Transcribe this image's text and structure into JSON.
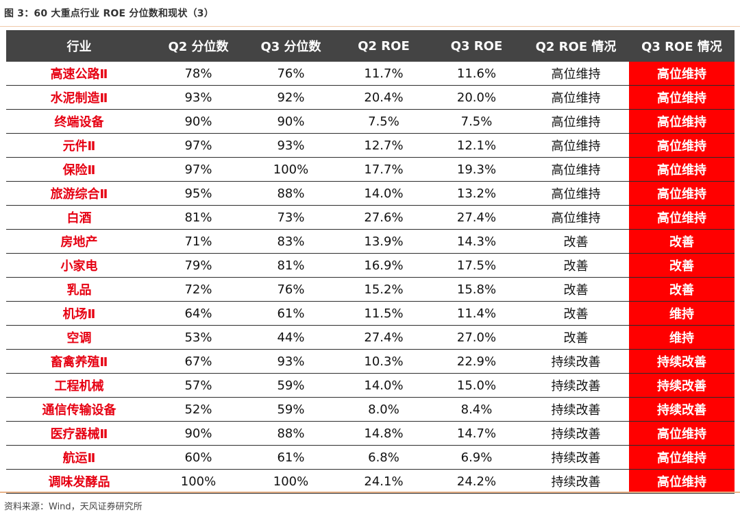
{
  "figure_title": "图 3：60 大重点行业 ROE 分位数和现状（3）",
  "source": "资料来源：Wind，天风证券研究所",
  "colors": {
    "header_bg": "#444444",
    "industry_text": "#e60012",
    "highlight_bg": "#ff0000"
  },
  "columns": [
    "行业",
    "Q2 分位数",
    "Q3 分位数",
    "Q2 ROE",
    "Q3 ROE",
    "Q2 ROE 情况",
    "Q3 ROE 情况"
  ],
  "rows": [
    [
      "高速公路Ⅱ",
      "78%",
      "76%",
      "11.7%",
      "11.6%",
      "高位维持",
      "高位维持"
    ],
    [
      "水泥制造Ⅱ",
      "93%",
      "92%",
      "20.4%",
      "20.0%",
      "高位维持",
      "高位维持"
    ],
    [
      "终端设备",
      "90%",
      "90%",
      "7.5%",
      "7.5%",
      "高位维持",
      "高位维持"
    ],
    [
      "元件Ⅱ",
      "97%",
      "93%",
      "12.7%",
      "12.1%",
      "高位维持",
      "高位维持"
    ],
    [
      "保险Ⅱ",
      "97%",
      "100%",
      "17.7%",
      "19.3%",
      "高位维持",
      "高位维持"
    ],
    [
      "旅游综合Ⅱ",
      "95%",
      "88%",
      "14.0%",
      "13.2%",
      "高位维持",
      "高位维持"
    ],
    [
      "白酒",
      "81%",
      "73%",
      "27.6%",
      "27.4%",
      "高位维持",
      "高位维持"
    ],
    [
      "房地产",
      "71%",
      "83%",
      "13.9%",
      "14.3%",
      "改善",
      "改善"
    ],
    [
      "小家电",
      "79%",
      "81%",
      "16.9%",
      "17.5%",
      "改善",
      "改善"
    ],
    [
      "乳品",
      "72%",
      "76%",
      "15.2%",
      "15.8%",
      "改善",
      "改善"
    ],
    [
      "机场Ⅱ",
      "64%",
      "61%",
      "11.5%",
      "11.4%",
      "改善",
      "维持"
    ],
    [
      "空调",
      "53%",
      "44%",
      "27.4%",
      "27.0%",
      "改善",
      "维持"
    ],
    [
      "畜禽养殖Ⅱ",
      "67%",
      "93%",
      "10.3%",
      "22.9%",
      "持续改善",
      "持续改善"
    ],
    [
      "工程机械",
      "57%",
      "59%",
      "14.0%",
      "15.0%",
      "持续改善",
      "持续改善"
    ],
    [
      "通信传输设备",
      "52%",
      "59%",
      "8.0%",
      "8.4%",
      "持续改善",
      "持续改善"
    ],
    [
      "医疗器械Ⅱ",
      "90%",
      "88%",
      "14.8%",
      "14.7%",
      "持续改善",
      "高位维持"
    ],
    [
      "航运Ⅱ",
      "60%",
      "61%",
      "6.8%",
      "6.9%",
      "持续改善",
      "高位维持"
    ],
    [
      "调味发酵品",
      "100%",
      "100%",
      "24.1%",
      "24.2%",
      "持续改善",
      "高位维持"
    ]
  ]
}
